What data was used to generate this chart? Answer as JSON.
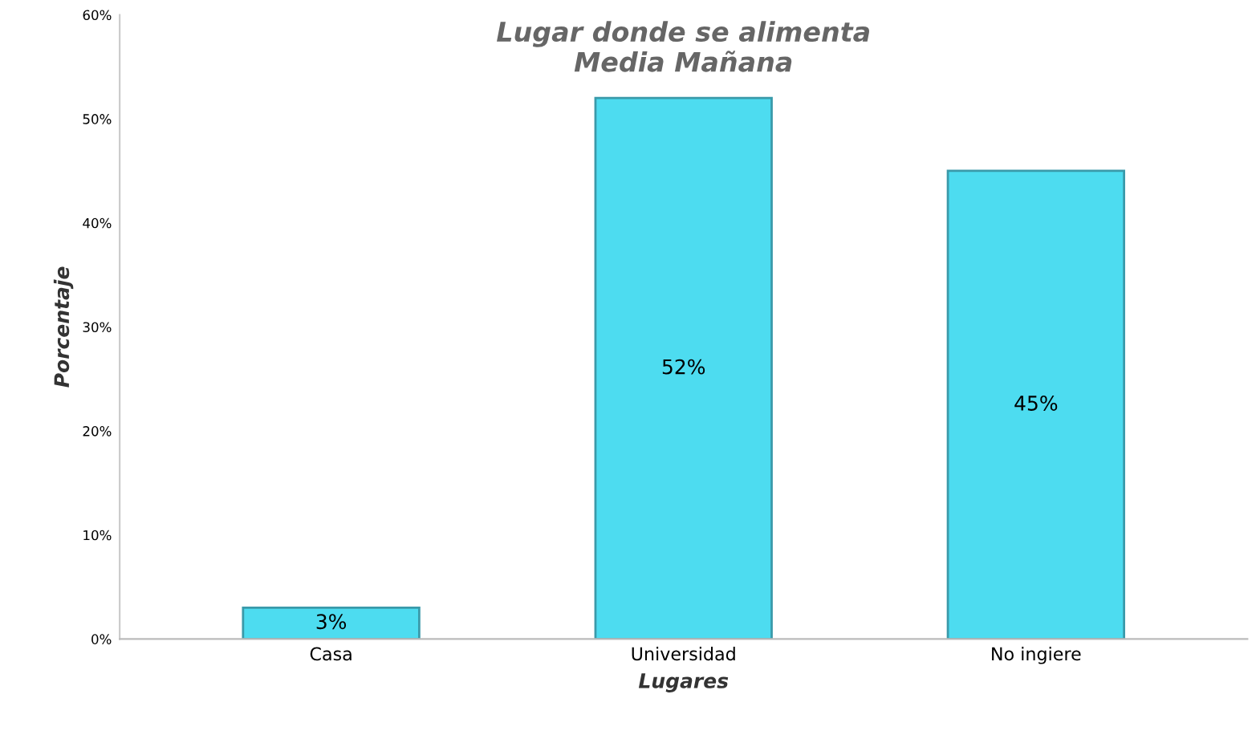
{
  "chart_data": {
    "type": "bar",
    "title": "Lugar donde se alimenta\nMedia Mañana",
    "xlabel": "Lugares",
    "ylabel": "Porcentaje",
    "categories": [
      "Casa",
      "Universidad",
      "No ingiere"
    ],
    "values": [
      3,
      52,
      45
    ],
    "value_labels": [
      "3%",
      "52%",
      "45%"
    ],
    "color": "#4ddcf0",
    "ylim": [
      0,
      60
    ],
    "yticks": [
      {
        "value": 0,
        "label": "0%"
      },
      {
        "value": 10,
        "label": "10%"
      },
      {
        "value": 20,
        "label": "20%"
      },
      {
        "value": 30,
        "label": "30%"
      },
      {
        "value": 40,
        "label": "40%"
      },
      {
        "value": 50,
        "label": "50%"
      },
      {
        "value": 60,
        "label": "60%"
      }
    ],
    "grid": false,
    "legend": false
  }
}
